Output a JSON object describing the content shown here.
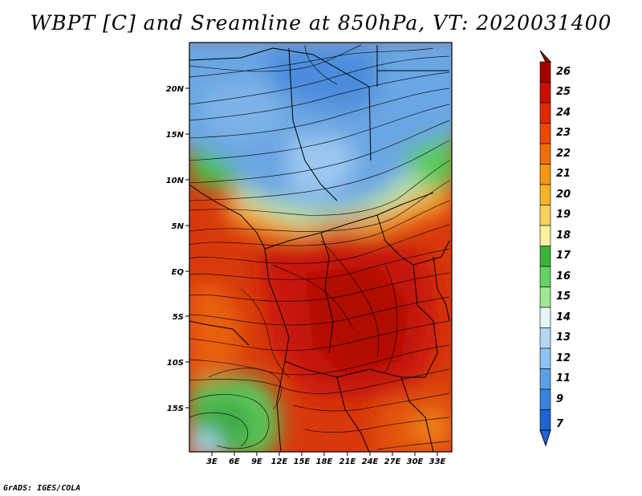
{
  "title": "WBPT [C] and Sreamline at 850hPa, VT: 2020031400",
  "credit": "GrADS: IGES/COLA",
  "map": {
    "lat_labels": [
      "20N",
      "15N",
      "10N",
      "5N",
      "EQ",
      "5S",
      "10S",
      "15S"
    ],
    "lon_labels": [
      "3E",
      "6E",
      "9E",
      "12E",
      "15E",
      "18E",
      "21E",
      "24E",
      "27E",
      "30E",
      "33E"
    ]
  },
  "colorbar": {
    "labels": [
      "26",
      "25",
      "24",
      "23",
      "22",
      "21",
      "20",
      "19",
      "18",
      "17",
      "16",
      "15",
      "14",
      "13",
      "12",
      "11",
      "9",
      "7"
    ],
    "colors": [
      "#a50000",
      "#c80f00",
      "#de2a00",
      "#eb4a00",
      "#f06e0a",
      "#f59614",
      "#f5b428",
      "#f8d25a",
      "#fdf0a0",
      "#3cb43c",
      "#64d264",
      "#a0e696",
      "#e6f5fa",
      "#b4d7f5",
      "#8cc3f0",
      "#5aa0e6",
      "#3c82dc",
      "#1e64d2"
    ]
  },
  "colors": {
    "ocean": "#2e8fdc",
    "frame": "#000000"
  }
}
